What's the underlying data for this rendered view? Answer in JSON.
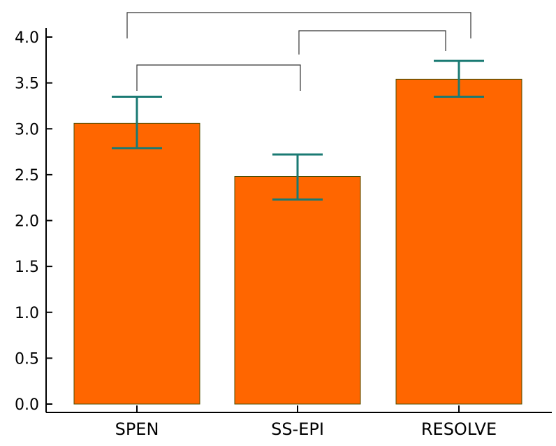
{
  "chart_data": {
    "type": "bar",
    "categories": [
      "SPEN",
      "SS-EPI",
      "RESOLVE"
    ],
    "values": [
      3.06,
      2.48,
      3.54
    ],
    "error_low": [
      2.79,
      2.23,
      3.35
    ],
    "error_high": [
      3.35,
      2.72,
      3.74
    ],
    "ylim": [
      0.0,
      4.0
    ],
    "yticks": [
      "0.0",
      "0.5",
      "1.0",
      "1.5",
      "2.0",
      "2.5",
      "3.0",
      "3.5",
      "4.0"
    ],
    "significance_brackets": [
      {
        "from": "SPEN",
        "to": "SS-EPI"
      },
      {
        "from": "SS-EPI",
        "to": "RESOLVE"
      },
      {
        "from": "SPEN",
        "to": "RESOLVE"
      }
    ],
    "title": "",
    "xlabel": "",
    "ylabel": "",
    "grid": false,
    "colors": {
      "bar_fill": "#ff6600",
      "bar_stroke": "#4d4d00",
      "error_bar": "#1a7a73",
      "bracket": "#333333",
      "axis": "#000000"
    }
  }
}
